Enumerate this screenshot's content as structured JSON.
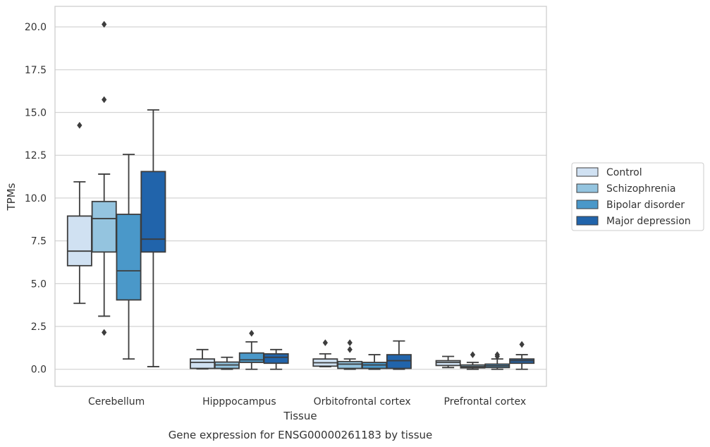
{
  "chart_data": {
    "type": "boxplot",
    "title": "",
    "caption": "Gene expression for ENSG00000261183 by tissue",
    "xlabel": "Tissue",
    "ylabel": "TPMs",
    "ylim": [
      -1.0,
      21.2
    ],
    "yticks": [
      "0.0",
      "2.5",
      "5.0",
      "7.5",
      "10.0",
      "12.5",
      "15.0",
      "17.5",
      "20.0"
    ],
    "ytick_values": [
      0,
      2.5,
      5,
      7.5,
      10,
      12.5,
      15,
      17.5,
      20
    ],
    "categories": [
      "Cerebellum",
      "Hipppocampus",
      "Orbitofrontal cortex",
      "Prefrontal cortex"
    ],
    "grid": "horizontal",
    "legend_position": "right",
    "series": [
      {
        "name": "Control",
        "color": "#d0e1f2",
        "boxes": [
          {
            "whislo": 3.85,
            "q1": 6.05,
            "med": 6.9,
            "q3": 8.95,
            "whishi": 10.95,
            "fliers": [
              14.25
            ]
          },
          {
            "whislo": 0.02,
            "q1": 0.05,
            "med": 0.4,
            "q3": 0.6,
            "whishi": 1.15,
            "fliers": []
          },
          {
            "whislo": 0.15,
            "q1": 0.18,
            "med": 0.38,
            "q3": 0.6,
            "whishi": 0.9,
            "fliers": [
              1.55
            ]
          },
          {
            "whislo": 0.1,
            "q1": 0.22,
            "med": 0.4,
            "q3": 0.5,
            "whishi": 0.75,
            "fliers": []
          }
        ]
      },
      {
        "name": "Schizophrenia",
        "color": "#94c4df",
        "boxes": [
          {
            "whislo": 3.1,
            "q1": 6.85,
            "med": 8.8,
            "q3": 9.8,
            "whishi": 11.4,
            "fliers": [
              2.15,
              15.75,
              20.15
            ]
          },
          {
            "whislo": 0.0,
            "q1": 0.05,
            "med": 0.25,
            "q3": 0.42,
            "whishi": 0.7,
            "fliers": []
          },
          {
            "whislo": 0.0,
            "q1": 0.05,
            "med": 0.3,
            "q3": 0.45,
            "whishi": 0.6,
            "fliers": [
              1.15,
              1.55
            ]
          },
          {
            "whislo": 0.0,
            "q1": 0.08,
            "med": 0.15,
            "q3": 0.25,
            "whishi": 0.4,
            "fliers": [
              0.85
            ]
          }
        ]
      },
      {
        "name": "Bipolar disorder",
        "color": "#4a98c9",
        "boxes": [
          {
            "whislo": 0.6,
            "q1": 4.05,
            "med": 5.75,
            "q3": 9.05,
            "whishi": 12.55,
            "fliers": []
          },
          {
            "whislo": 0.0,
            "q1": 0.4,
            "med": 0.55,
            "q3": 0.95,
            "whishi": 1.6,
            "fliers": [
              2.1
            ]
          },
          {
            "whislo": 0.0,
            "q1": 0.05,
            "med": 0.25,
            "q3": 0.4,
            "whishi": 0.85,
            "fliers": []
          },
          {
            "whislo": 0.0,
            "q1": 0.1,
            "med": 0.2,
            "q3": 0.3,
            "whishi": 0.6,
            "fliers": [
              0.75,
              0.85
            ]
          }
        ]
      },
      {
        "name": "Major depression",
        "color": "#2164ab",
        "boxes": [
          {
            "whislo": 0.15,
            "q1": 6.85,
            "med": 7.6,
            "q3": 11.55,
            "whishi": 15.15,
            "fliers": []
          },
          {
            "whislo": 0.0,
            "q1": 0.35,
            "med": 0.7,
            "q3": 0.9,
            "whishi": 1.15,
            "fliers": []
          },
          {
            "whislo": 0.0,
            "q1": 0.05,
            "med": 0.5,
            "q3": 0.85,
            "whishi": 1.65,
            "fliers": []
          },
          {
            "whislo": 0.0,
            "q1": 0.35,
            "med": 0.5,
            "q3": 0.6,
            "whishi": 0.85,
            "fliers": [
              1.45
            ]
          }
        ]
      }
    ]
  }
}
